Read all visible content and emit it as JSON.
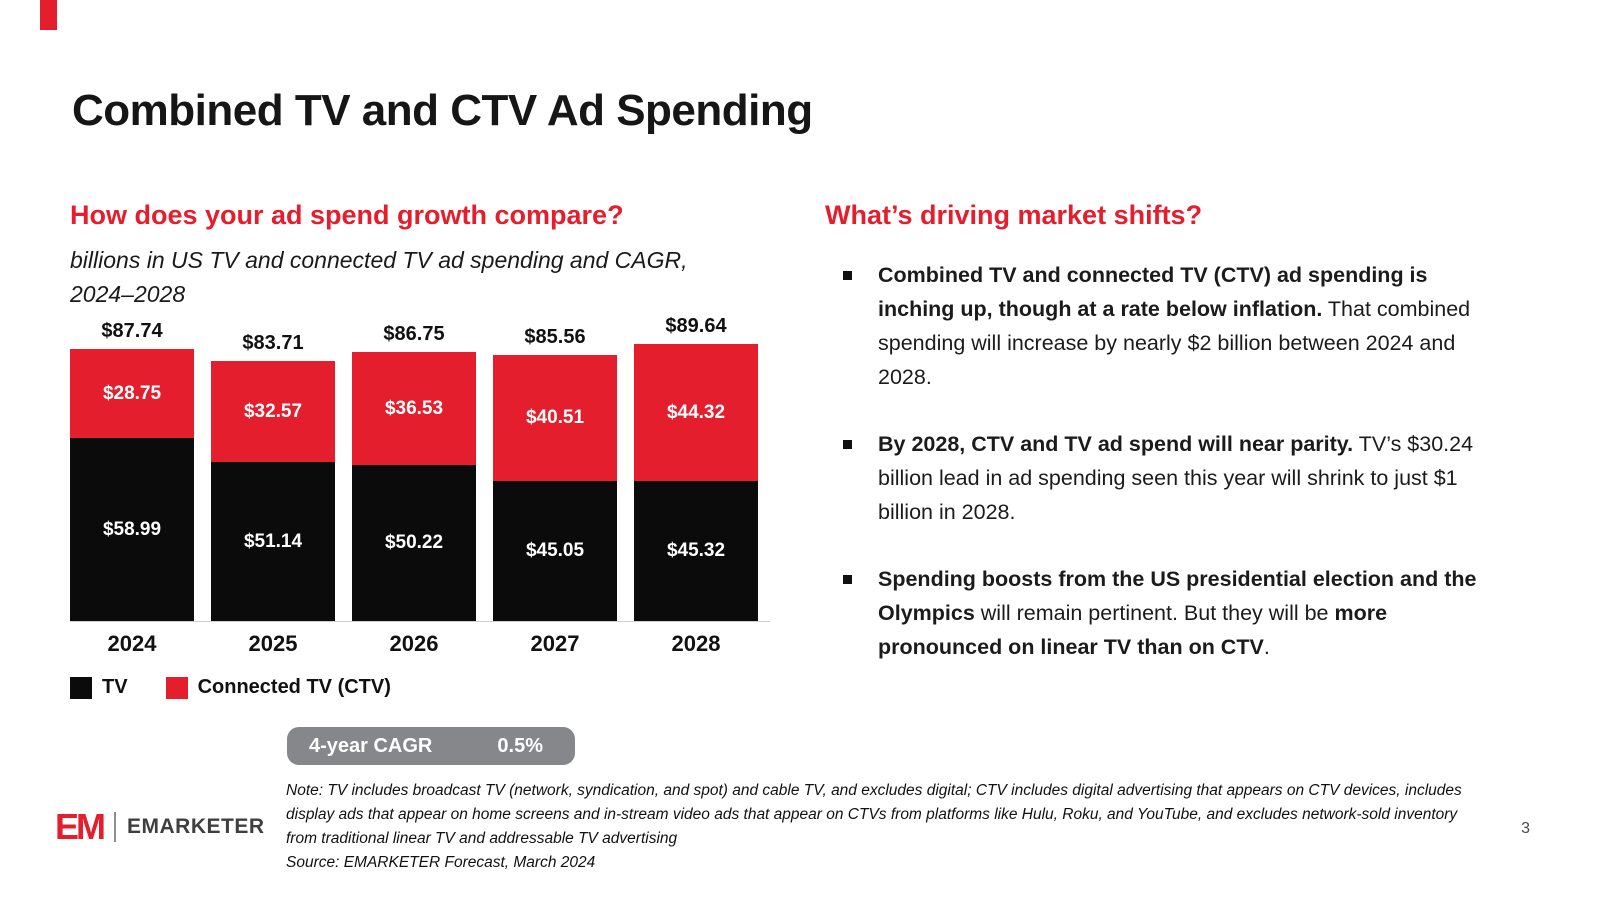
{
  "slide": {
    "title": "Combined TV and CTV Ad Spending",
    "page_number": "3",
    "accent_color": "#E41E2D"
  },
  "left": {
    "heading": "How does your ad spend growth compare?",
    "subtitle": "billions in US TV and connected TV ad spending and CAGR, 2024–2028"
  },
  "chart_data": {
    "type": "bar",
    "stacked": true,
    "title": "billions in US TV and connected TV ad spending and CAGR, 2024–2028",
    "categories": [
      "2024",
      "2025",
      "2026",
      "2027",
      "2028"
    ],
    "series": [
      {
        "name": "TV",
        "color": "#0B0B0B",
        "values": [
          58.99,
          51.14,
          50.22,
          45.05,
          45.32
        ]
      },
      {
        "name": "Connected TV (CTV)",
        "color": "#E41E2D",
        "values": [
          28.75,
          32.57,
          36.53,
          40.51,
          44.32
        ]
      }
    ],
    "totals": [
      87.74,
      83.71,
      86.75,
      85.56,
      89.64
    ],
    "value_prefix": "$",
    "ylim": [
      0,
      90
    ],
    "grid": false,
    "legend_position": "bottom"
  },
  "cagr": {
    "label": "4-year CAGR",
    "value": "0.5%"
  },
  "right": {
    "heading": "What’s driving market shifts?",
    "bullets": [
      {
        "bold": "Combined TV and connected TV (CTV) ad spending is inching up, though at a rate below inflation.",
        "normal": " That combined spending will increase by nearly $2 billion between 2024 and 2028."
      },
      {
        "bold": "By 2028, CTV and TV ad spend will near parity.",
        "normal": " TV’s $30.24 billion lead in ad spending seen this year will shrink to just $1 billion in 2028."
      },
      {
        "bold": "Spending boosts from the US presidential election and the Olympics",
        "normal": " will remain pertinent. But they will be ",
        "bold2": "more pronounced on linear TV than on CTV",
        "normal2": "."
      }
    ]
  },
  "footer": {
    "note": "Note: TV includes broadcast TV (network, syndication, and spot) and cable TV, and excludes digital; CTV includes digital advertising that appears on CTV devices, includes display ads that appear on home screens and in-stream video ads that appear on CTVs from platforms like Hulu, Roku, and YouTube, and excludes network-sold inventory from traditional linear TV and addressable TV advertising",
    "source": "Source: EMARKETER Forecast, March 2024",
    "brand_mark": "EM",
    "brand": "EMARKETER"
  }
}
